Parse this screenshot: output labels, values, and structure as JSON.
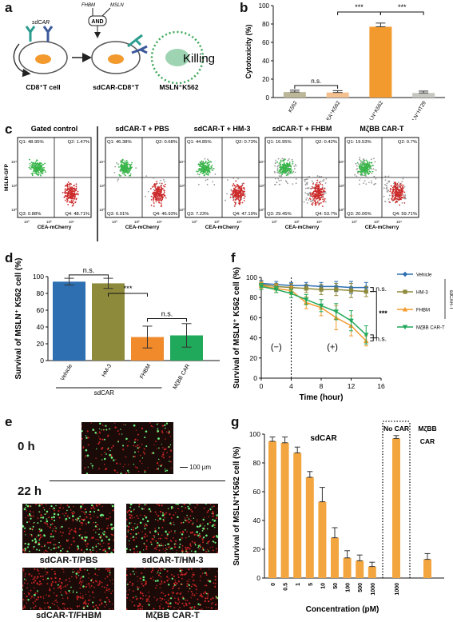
{
  "panels": {
    "a": {
      "letter": "a",
      "sdcar": "sdCAR",
      "fhbm": "FHBM",
      "msln": "MSLN",
      "and": "AND",
      "killing": "Killing",
      "cell1": "CD8⁺T cell",
      "cell2": "sdCAR-CD8⁺T",
      "cell3": "MSLN⁺K562"
    },
    "b": {
      "letter": "b"
    },
    "c": {
      "letter": "c"
    },
    "d": {
      "letter": "d"
    },
    "e": {
      "letter": "e"
    },
    "f": {
      "letter": "f"
    },
    "g": {
      "letter": "g"
    }
  },
  "colors": {
    "orange": "#f39a2e",
    "blue_green": "#2d6fb0",
    "olive": "#8e8a3c",
    "green": "#21a95b",
    "salmon": "#f5b983",
    "grey_bar": "#b6b196",
    "light_grey_bar": "#c5c7c0",
    "dark_red": "#cc2a2a",
    "green_dot": "#39b54a"
  },
  "chart_b": {
    "type": "bar",
    "ylabel": "Cytotoxicity (%)",
    "ylim": [
      0,
      100
    ],
    "yticks": [
      "0",
      "20",
      "40",
      "60",
      "80",
      "100"
    ],
    "categories": [
      "K562",
      "CEA⁺K562",
      "MSLN⁺K562",
      "MSLN⁺HT29"
    ],
    "values": [
      6,
      5.5,
      77,
      5
    ],
    "errors": [
      2,
      2,
      4,
      2
    ],
    "bar_colors": [
      "#bdb79a",
      "#f5c08f",
      "#f39a2e",
      "#c5c7c0"
    ],
    "sig": [
      "n.s.",
      "***",
      "***"
    ]
  },
  "chart_c": {
    "type": "scatter",
    "xlabel": "CEA-mCherry",
    "ylabel": "MSLN-GFP",
    "titles": [
      "Gated control",
      "sdCAR-T + PBS",
      "sdCAR-T + HM-3",
      "sdCAR-T + FHBM",
      "MζBB CAR-T"
    ],
    "quadrants": [
      {
        "q1": "Q1: 48.95%",
        "q2": "Q2: 1.47%",
        "q3": "Q3: 0.88%",
        "q4": "Q4: 48.71%",
        "grey": 0
      },
      {
        "q1": "Q1: 46.38%",
        "q2": "Q2: 0.68%",
        "q3": "Q3: 6.01%",
        "q4": "Q4: 46.93%",
        "grey": 0.1
      },
      {
        "q1": "Q1: 44.85%",
        "q2": "Q2: 0.73%",
        "q3": "Q3: 7.23%",
        "q4": "Q4: 47.19%",
        "grey": 0.15
      },
      {
        "q1": "Q1: 16.95%",
        "q2": "Q2: 0.42%",
        "q3": "Q3: 29.45%",
        "q4": "Q4: 53.7%",
        "grey": 0.55
      },
      {
        "q1": "Q1: 19.53%",
        "q2": "Q2: 0.7%",
        "q3": "Q3: 20.06%",
        "q4": "Q4: 59.71%",
        "grey": 0.45
      }
    ],
    "tick_labels": [
      "10⁰",
      "10²",
      "10⁴"
    ]
  },
  "chart_d": {
    "type": "bar",
    "ylabel": "Survival of MSLN⁺ K562 cell (%)",
    "ylim": [
      0,
      100
    ],
    "yticks": [
      "0",
      "20",
      "40",
      "60",
      "80",
      "100"
    ],
    "categories": [
      "Vehicle",
      "HM-3",
      "FHBM",
      "MζBB CAR"
    ],
    "group_label": "sdCAR",
    "values": [
      94,
      92,
      28,
      30
    ],
    "errors": [
      4,
      6,
      13,
      14
    ],
    "bar_colors": [
      "#2d6fb0",
      "#8e8a3c",
      "#f08a2a",
      "#21a95b"
    ],
    "sig": [
      "n.s.",
      "***",
      "n.s."
    ]
  },
  "chart_f": {
    "type": "line",
    "xlabel": "Time (hour)",
    "ylabel": "Survival of MSLN⁺ K562 cell (%)",
    "xlim": [
      0,
      16
    ],
    "ylim": [
      0,
      100
    ],
    "xticks": [
      "0",
      "4",
      "8",
      "12",
      "16"
    ],
    "yticks": [
      "0",
      "20",
      "40",
      "60",
      "80",
      "100"
    ],
    "x": [
      0,
      2,
      4,
      6,
      8,
      10,
      12,
      14
    ],
    "series": [
      {
        "name": "Vehicle",
        "values": [
          94,
          93,
          92,
          92,
          91,
          91,
          90,
          90
        ],
        "err": [
          3,
          3,
          3,
          3,
          4,
          5,
          6,
          5
        ],
        "color": "#2d6fb0",
        "marker": "diamond"
      },
      {
        "name": "HM-3",
        "values": [
          93,
          91,
          90,
          89,
          88,
          88,
          87,
          86
        ],
        "err": [
          3,
          3,
          4,
          4,
          5,
          6,
          7,
          5
        ],
        "color": "#8e8a3c",
        "marker": "square"
      },
      {
        "name": "FHBM",
        "values": [
          92,
          89,
          87,
          75,
          70,
          60,
          52,
          37
        ],
        "err": [
          3,
          4,
          4,
          6,
          8,
          12,
          10,
          5
        ],
        "color": "#f39a2e",
        "marker": "triangle"
      },
      {
        "name": "MζBB CAR-T",
        "values": [
          91,
          88,
          84,
          78,
          72,
          66,
          57,
          43
        ],
        "err": [
          3,
          3,
          4,
          5,
          6,
          8,
          10,
          9
        ],
        "color": "#21a95b",
        "marker": "triangle-down"
      }
    ],
    "legend_group": "sdCAR-T",
    "phase_minus": "(−)",
    "phase_plus": "(+)",
    "sig": [
      "n.s.",
      "***",
      "n.s."
    ]
  },
  "micro_e": {
    "time0": "0 h",
    "time22": "22 h",
    "scale": "100 μm",
    "labels": [
      "sdCAR-T/PBS",
      "sdCAR-T/HM-3",
      "sdCAR-T/FHBM",
      "MζBB CAR-T"
    ]
  },
  "chart_g": {
    "type": "bar",
    "xlabel": "Concentration (pM)",
    "ylabel": "Survival of MSLN⁺K562 cell (%)",
    "ylim": [
      0,
      100
    ],
    "yticks": [
      "0",
      "20",
      "40",
      "60",
      "80",
      "100"
    ],
    "categories": [
      "0",
      "0.5",
      "1",
      "5",
      "10",
      "50",
      "100",
      "500",
      "1000"
    ],
    "values": [
      95,
      94,
      87,
      70,
      53,
      28,
      14,
      12,
      8
    ],
    "errors": [
      3,
      4,
      4,
      4,
      10,
      7,
      5,
      4,
      3
    ],
    "nocar_category": "1000",
    "nocar_value": 97,
    "nocar_error": 2,
    "mzbb_value": 13,
    "mzbb_error": 4,
    "group_sdcar": "sdCAR",
    "group_nocar": "No CAR",
    "group_mzbb_1": "MζBB",
    "group_mzbb_2": "CAR",
    "bar_color": "#f3a640"
  }
}
